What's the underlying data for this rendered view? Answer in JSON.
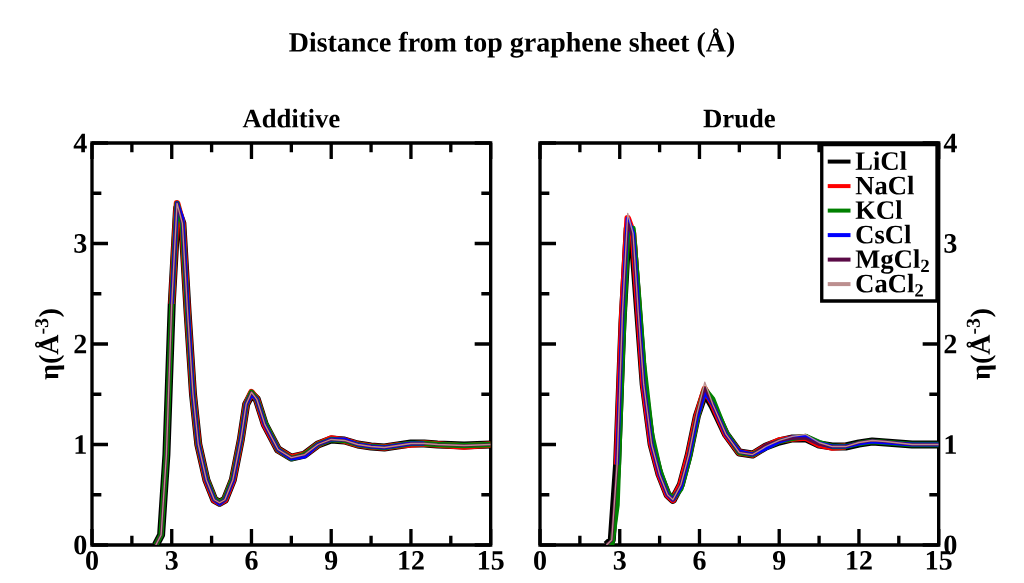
{
  "chart_data": [
    {
      "type": "line",
      "title": "Additive",
      "ylabel": "η(Å$^{-3}$)",
      "annotations": [
        "Distance from top graphene sheet (Å)"
      ],
      "x": [
        2.4,
        2.6,
        2.8,
        3.0,
        3.2,
        3.4,
        3.6,
        3.8,
        4.0,
        4.3,
        4.6,
        4.8,
        5.0,
        5.3,
        5.6,
        5.8,
        6.0,
        6.2,
        6.5,
        7.0,
        7.5,
        8.0,
        8.5,
        9.0,
        9.5,
        10.0,
        10.5,
        11.0,
        11.5,
        12.0,
        12.5,
        13.0,
        14.0,
        15.0
      ],
      "xlim": [
        0,
        15
      ],
      "xticks": [
        0,
        3,
        6,
        9,
        12,
        15
      ],
      "ylim": [
        0,
        4
      ],
      "yticks": [
        0,
        1,
        2,
        3,
        4
      ],
      "legend": false,
      "series": [
        {
          "color": "#000000",
          "values": [
            0,
            0.1,
            0.9,
            2.4,
            3.35,
            3.2,
            2.3,
            1.5,
            1.0,
            0.65,
            0.45,
            0.42,
            0.45,
            0.65,
            1.05,
            1.4,
            1.5,
            1.45,
            1.2,
            0.95,
            0.87,
            0.9,
            1.0,
            1.05,
            1.04,
            1.0,
            0.98,
            0.97,
            0.99,
            1.01,
            1.01,
            1.0,
            0.99,
            1.0
          ]
        },
        {
          "color": "#ff0000",
          "values": [
            null,
            null,
            null,
            2.4,
            3.4,
            3.2,
            2.3,
            1.5,
            1.0,
            0.65,
            0.45,
            0.42,
            0.45,
            0.65,
            1.05,
            1.4,
            1.52,
            1.45,
            1.2,
            0.95,
            0.87,
            0.9,
            1.0,
            1.06,
            1.04,
            1.0,
            0.98,
            0.97,
            0.99,
            1.0,
            1.01,
            1.0,
            0.98,
            1.0
          ]
        },
        {
          "color": "#008000",
          "values": [
            0,
            0.1,
            0.9,
            2.4,
            3.4,
            3.2,
            2.3,
            1.5,
            1.0,
            0.66,
            0.46,
            0.42,
            0.46,
            0.66,
            1.05,
            1.4,
            1.52,
            1.45,
            1.22,
            0.95,
            0.86,
            0.9,
            1.0,
            1.05,
            1.04,
            1.0,
            0.98,
            0.97,
            0.99,
            1.01,
            1.01,
            1.0,
            0.99,
            1.0
          ]
        },
        {
          "color": "#0000ff",
          "values": [
            null,
            null,
            null,
            2.4,
            3.4,
            3.25,
            2.35,
            1.5,
            1.0,
            0.65,
            0.45,
            0.41,
            0.45,
            0.64,
            1.05,
            1.4,
            1.5,
            1.45,
            1.2,
            0.95,
            0.86,
            0.88,
            1.0,
            1.05,
            1.05,
            1.0,
            0.98,
            0.97,
            0.99,
            1.01,
            1.01,
            null,
            null,
            null
          ]
        },
        {
          "color": "#5a0a46",
          "values": [
            0,
            0.1,
            0.9,
            2.4,
            3.4,
            3.2,
            2.3,
            1.5,
            1.0,
            0.65,
            0.45,
            0.42,
            0.45,
            0.65,
            1.05,
            1.4,
            1.52,
            1.45,
            1.2,
            0.95,
            0.87,
            0.9,
            1.0,
            1.05,
            1.04,
            1.0,
            0.98,
            0.97,
            0.99,
            1.01,
            1.01,
            1.0,
            0.99,
            1.0
          ]
        },
        {
          "color": "#bc8f8f",
          "values": [
            0,
            0.1,
            0.9,
            2.4,
            3.4,
            3.2,
            2.3,
            1.5,
            1.0,
            0.65,
            0.45,
            0.42,
            0.45,
            0.65,
            1.05,
            1.4,
            1.52,
            1.45,
            1.2,
            0.95,
            0.87,
            0.9,
            1.0,
            1.05,
            1.04,
            1.0,
            0.98,
            0.97,
            0.99,
            1.01,
            1.01,
            1.0,
            0.99,
            1.0
          ]
        }
      ]
    },
    {
      "type": "line",
      "title": "Drude",
      "y2label": "η(Å$^{-3}$)",
      "x": [
        2.5,
        2.7,
        2.9,
        3.1,
        3.3,
        3.5,
        3.7,
        3.9,
        4.2,
        4.5,
        4.8,
        5.0,
        5.3,
        5.6,
        5.9,
        6.2,
        6.5,
        7.0,
        7.5,
        8.0,
        8.5,
        9.0,
        9.5,
        10.0,
        10.5,
        11.0,
        11.5,
        12.0,
        12.5,
        13.0,
        14.0,
        15.0
      ],
      "xlim": [
        0,
        15
      ],
      "xticks": [
        0,
        3,
        6,
        9,
        12,
        15
      ],
      "y2lim": [
        0,
        4
      ],
      "y2ticks": [
        0,
        1,
        2,
        3,
        4
      ],
      "legend": "top right",
      "series": [
        {
          "name": "LiCl",
          "color": "#000000",
          "axis": "y2",
          "values": [
            0,
            0.05,
            0.8,
            2.2,
            3.15,
            3.0,
            2.3,
            1.6,
            1.0,
            0.7,
            0.5,
            0.45,
            0.6,
            0.9,
            1.28,
            1.52,
            1.38,
            1.1,
            0.92,
            0.9,
            0.98,
            1.03,
            1.06,
            1.06,
            1.0,
            0.98,
            0.98,
            1.01,
            1.03,
            1.02,
            1.0,
            1.0
          ]
        },
        {
          "name": "NaCl",
          "color": "#ff0000",
          "axis": "y2",
          "values": [
            null,
            null,
            0.8,
            2.3,
            3.25,
            3.1,
            2.35,
            1.6,
            1.0,
            0.7,
            0.5,
            0.45,
            0.6,
            0.9,
            1.28,
            1.55,
            1.4,
            1.1,
            0.92,
            0.9,
            0.98,
            1.04,
            1.06,
            1.07,
            1.0,
            0.97,
            0.98,
            null,
            null,
            null,
            null,
            null
          ]
        },
        {
          "name": "KCl",
          "color": "#008000",
          "axis": "y2",
          "values": [
            0,
            0,
            0.4,
            1.9,
            3.15,
            3.15,
            2.5,
            1.8,
            1.1,
            0.75,
            0.52,
            0.46,
            0.56,
            0.85,
            1.25,
            1.55,
            1.45,
            1.12,
            0.92,
            0.9,
            0.97,
            1.03,
            1.06,
            1.08,
            1.02,
            0.98,
            0.98,
            1.01,
            1.03,
            1.02,
            1.0,
            1.0
          ]
        },
        {
          "name": "CsCl",
          "color": "#0000ff",
          "axis": "y2",
          "values": [
            null,
            null,
            0.8,
            2.3,
            3.25,
            3.1,
            2.35,
            1.6,
            1.0,
            0.7,
            0.5,
            0.45,
            0.58,
            0.88,
            1.26,
            1.52,
            1.4,
            1.1,
            0.93,
            0.9,
            0.96,
            1.03,
            1.07,
            1.08,
            1.01,
            0.98,
            0.98,
            1.01,
            1.03,
            1.02,
            1.0,
            1.0
          ]
        },
        {
          "name": "MgCl$_{2}$",
          "color": "#5a0a46",
          "axis": "y2",
          "values": [
            0,
            0.05,
            0.8,
            2.3,
            3.2,
            3.05,
            2.3,
            1.6,
            1.0,
            0.7,
            0.5,
            0.45,
            0.6,
            0.9,
            1.3,
            1.56,
            1.4,
            1.1,
            0.92,
            0.9,
            1.0,
            1.04,
            1.06,
            1.06,
            1.0,
            0.98,
            0.98,
            1.02,
            1.04,
            1.03,
            1.0,
            1.0
          ]
        },
        {
          "name": "CaCl$_{2}$",
          "color": "#bc8f8f",
          "axis": "y2",
          "values": [
            0,
            0.05,
            0.8,
            2.3,
            3.3,
            3.1,
            2.3,
            1.6,
            1.0,
            0.7,
            0.5,
            0.45,
            0.6,
            0.9,
            1.3,
            1.62,
            1.4,
            1.1,
            0.92,
            0.9,
            0.98,
            1.04,
            1.08,
            1.1,
            1.02,
            0.98,
            0.98,
            1.02,
            1.04,
            1.03,
            1.0,
            1.0
          ]
        }
      ]
    }
  ]
}
